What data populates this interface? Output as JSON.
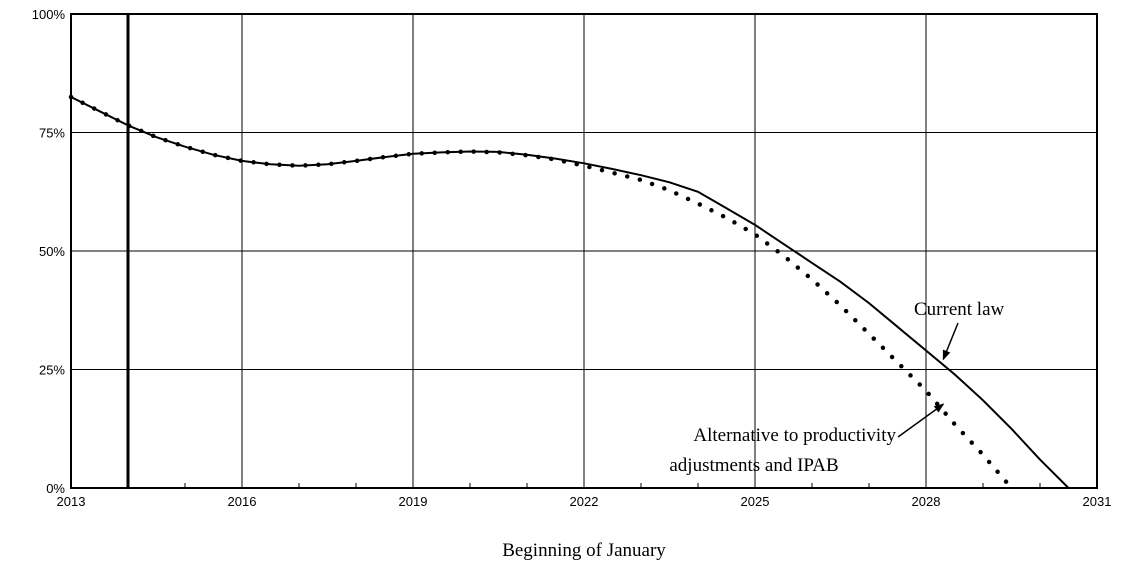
{
  "chart_data": {
    "type": "line",
    "title": "",
    "xlabel": "Beginning of January",
    "ylabel": "",
    "xlim": [
      2013,
      2031
    ],
    "ylim": [
      0,
      100
    ],
    "x_ticks": [
      2013,
      2016,
      2019,
      2022,
      2025,
      2028,
      2031
    ],
    "x_tick_labels": [
      "2013",
      "2016",
      "2019",
      "2022",
      "2025",
      "2028",
      "2031"
    ],
    "y_ticks": [
      0,
      25,
      50,
      75,
      100
    ],
    "y_tick_labels": [
      "0%",
      "25%",
      "50%",
      "75%",
      "100%"
    ],
    "grid": true,
    "vertical_marker_x": 2014,
    "series": [
      {
        "name": "Current law",
        "style": "solid",
        "points": [
          [
            2013,
            82.5
          ],
          [
            2013.5,
            79.5
          ],
          [
            2014,
            76.5
          ],
          [
            2014.5,
            74.0
          ],
          [
            2015,
            72.0
          ],
          [
            2015.5,
            70.3
          ],
          [
            2016,
            69.0
          ],
          [
            2016.5,
            68.3
          ],
          [
            2017,
            68.0
          ],
          [
            2017.5,
            68.3
          ],
          [
            2018,
            69.0
          ],
          [
            2018.5,
            69.8
          ],
          [
            2019,
            70.5
          ],
          [
            2019.5,
            70.8
          ],
          [
            2020,
            71.0
          ],
          [
            2020.5,
            70.9
          ],
          [
            2021,
            70.3
          ],
          [
            2021.5,
            69.5
          ],
          [
            2022,
            68.5
          ],
          [
            2022.5,
            67.3
          ],
          [
            2023,
            66.0
          ],
          [
            2023.5,
            64.5
          ],
          [
            2024,
            62.5
          ],
          [
            2024.5,
            59.0
          ],
          [
            2025,
            55.5
          ],
          [
            2025.5,
            51.5
          ],
          [
            2026,
            47.5
          ],
          [
            2026.5,
            43.5
          ],
          [
            2027,
            39.0
          ],
          [
            2027.5,
            34.0
          ],
          [
            2028,
            29.0
          ],
          [
            2028.5,
            24.0
          ],
          [
            2029,
            18.5
          ],
          [
            2029.5,
            12.5
          ],
          [
            2030,
            6.0
          ],
          [
            2030.5,
            0
          ]
        ]
      },
      {
        "name": "Alternative to productivity adjustments and IPAB",
        "style": "dotted",
        "points": [
          [
            2013,
            82.5
          ],
          [
            2013.5,
            79.5
          ],
          [
            2014,
            76.5
          ],
          [
            2014.5,
            74.0
          ],
          [
            2015,
            72.0
          ],
          [
            2015.5,
            70.3
          ],
          [
            2016,
            69.0
          ],
          [
            2016.5,
            68.3
          ],
          [
            2017,
            68.0
          ],
          [
            2017.5,
            68.3
          ],
          [
            2018,
            69.0
          ],
          [
            2018.5,
            69.8
          ],
          [
            2019,
            70.5
          ],
          [
            2019.5,
            70.8
          ],
          [
            2020,
            71.0
          ],
          [
            2020.5,
            70.8
          ],
          [
            2021,
            70.2
          ],
          [
            2021.5,
            69.3
          ],
          [
            2022,
            68.0
          ],
          [
            2022.5,
            66.5
          ],
          [
            2023,
            65.0
          ],
          [
            2023.5,
            62.8
          ],
          [
            2024,
            60.0
          ],
          [
            2024.5,
            57.0
          ],
          [
            2025,
            53.5
          ],
          [
            2025.5,
            49.0
          ],
          [
            2026,
            44.0
          ],
          [
            2026.5,
            38.5
          ],
          [
            2027,
            32.5
          ],
          [
            2027.5,
            26.5
          ],
          [
            2028,
            20.5
          ],
          [
            2028.5,
            13.5
          ],
          [
            2029,
            7.0
          ],
          [
            2029.5,
            0
          ]
        ]
      }
    ],
    "annotations": [
      {
        "text": "Current law",
        "target_series": 0,
        "target_x": 2028.25
      },
      {
        "text": "Alternative to productivity",
        "text_line2": "adjustments and IPAB",
        "target_series": 1,
        "target_x": 2028.2
      }
    ]
  }
}
